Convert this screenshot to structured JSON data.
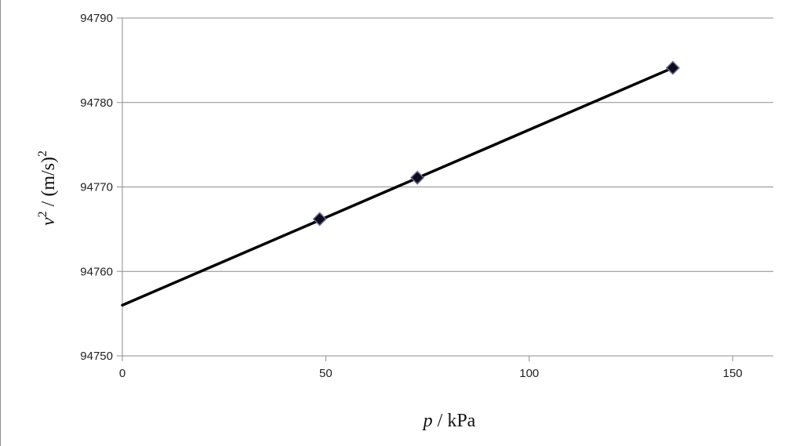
{
  "chart_data": {
    "type": "scatter",
    "title": "",
    "x": [
      48.5,
      72.5,
      135.3
    ],
    "y": [
      94766.2,
      94771.1,
      94784.1
    ],
    "trendline": {
      "type": "linear",
      "x": [
        0,
        135.3
      ],
      "y": [
        94756.0,
        94784.1
      ]
    },
    "xlabel": {
      "variable": "p",
      "unit": " / kPa"
    },
    "ylabel": {
      "variable": "v",
      "exponent": "2",
      "unit": " / (m/s)",
      "unit_exponent": "2"
    },
    "xlim": [
      0,
      160
    ],
    "ylim": [
      94750,
      94790
    ],
    "xticks": [
      0,
      50,
      100,
      150
    ],
    "yticks": [
      94750,
      94760,
      94770,
      94780,
      94790
    ],
    "xtick_labels": [
      "0",
      "50",
      "100",
      "150"
    ],
    "ytick_labels": [
      "94750",
      "94760",
      "94770",
      "94780",
      "94790"
    ],
    "grid": "horizontal major gridlines",
    "legend": "none",
    "marker": "diamond",
    "colors": {
      "line": "#000000",
      "marker_fill": "#0d0d1a",
      "marker_edge": "#6a6a9a",
      "gridline": "#8c8c8c",
      "axis": "#8c8c8c"
    }
  }
}
